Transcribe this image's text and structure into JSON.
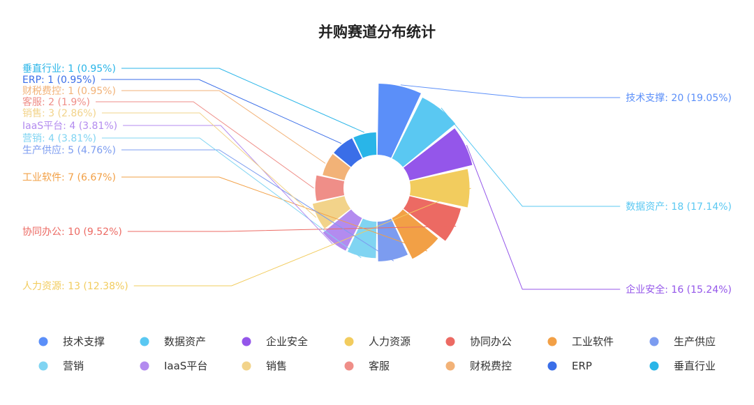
{
  "chart_data": {
    "type": "pie",
    "title": "并购赛道分布统计",
    "variant": "nightingale-rose",
    "legend_position": "bottom",
    "slices": [
      {
        "name": "技术支撑",
        "value": 20,
        "percent": "19.05%",
        "color": "#5B8FF9"
      },
      {
        "name": "数据资产",
        "value": 18,
        "percent": "17.14%",
        "color": "#5AC8F2"
      },
      {
        "name": "企业安全",
        "value": 16,
        "percent": "15.24%",
        "color": "#9456EA"
      },
      {
        "name": "人力资源",
        "value": 13,
        "percent": "12.38%",
        "color": "#F2CC5E"
      },
      {
        "name": "协同办公",
        "value": 10,
        "percent": "9.52%",
        "color": "#EC6A63"
      },
      {
        "name": "工业软件",
        "value": 7,
        "percent": "6.67%",
        "color": "#F2A046"
      },
      {
        "name": "生产供应",
        "value": 5,
        "percent": "4.76%",
        "color": "#7C9CF0"
      },
      {
        "name": "营销",
        "value": 4,
        "percent": "3.81%",
        "color": "#80D4F2"
      },
      {
        "name": "IaaS平台",
        "value": 4,
        "percent": "3.81%",
        "color": "#B38BEF"
      },
      {
        "name": "销售",
        "value": 3,
        "percent": "2.86%",
        "color": "#F2D38A"
      },
      {
        "name": "客服",
        "value": 2,
        "percent": "1.9%",
        "color": "#EF8E88"
      },
      {
        "name": "财税费控",
        "value": 1,
        "percent": "0.95%",
        "color": "#F2B277"
      },
      {
        "name": "ERP",
        "value": 1,
        "percent": "0.95%",
        "color": "#3A6EE8"
      },
      {
        "name": "垂直行业",
        "value": 1,
        "percent": "0.95%",
        "color": "#29B5E8"
      }
    ]
  }
}
